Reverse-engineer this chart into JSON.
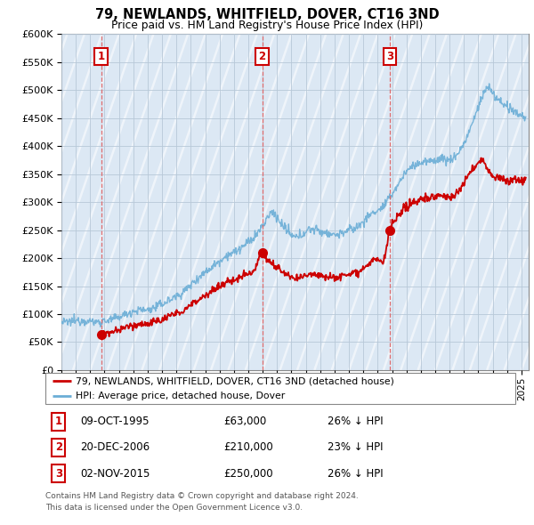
{
  "title": "79, NEWLANDS, WHITFIELD, DOVER, CT16 3ND",
  "subtitle": "Price paid vs. HM Land Registry's House Price Index (HPI)",
  "ytick_values": [
    0,
    50000,
    100000,
    150000,
    200000,
    250000,
    300000,
    350000,
    400000,
    450000,
    500000,
    550000,
    600000
  ],
  "xmin": 1993.0,
  "xmax": 2025.5,
  "ymin": 0,
  "ymax": 600000,
  "sale_dates": [
    1995.77,
    2006.97,
    2015.84
  ],
  "sale_prices": [
    63000,
    210000,
    250000
  ],
  "sale_labels": [
    "1",
    "2",
    "3"
  ],
  "legend_line1": "79, NEWLANDS, WHITFIELD, DOVER, CT16 3ND (detached house)",
  "legend_line2": "HPI: Average price, detached house, Dover",
  "table_rows": [
    [
      "1",
      "09-OCT-1995",
      "£63,000",
      "26% ↓ HPI"
    ],
    [
      "2",
      "20-DEC-2006",
      "£210,000",
      "23% ↓ HPI"
    ],
    [
      "3",
      "02-NOV-2015",
      "£250,000",
      "26% ↓ HPI"
    ]
  ],
  "footnote1": "Contains HM Land Registry data © Crown copyright and database right 2024.",
  "footnote2": "This data is licensed under the Open Government Licence v3.0.",
  "hpi_color": "#6baed6",
  "price_color": "#cc0000",
  "vline_color": "#e06060",
  "grid_color": "#b8c8d8",
  "plot_bg": "#dce8f4",
  "hatch_color": "#ccdaec"
}
